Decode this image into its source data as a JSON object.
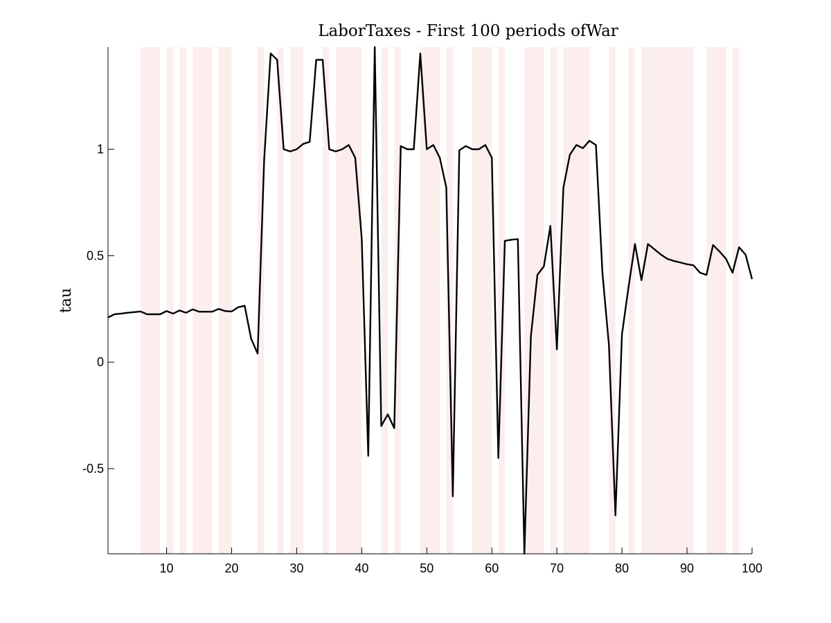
{
  "chart_data": {
    "type": "line",
    "title": "LaborTaxes - First 100 periods ofWar",
    "xlabel": "",
    "ylabel": "tau",
    "xlim": [
      1,
      100
    ],
    "ylim": [
      -0.9,
      1.48
    ],
    "xticks": [
      10,
      20,
      30,
      40,
      50,
      60,
      70,
      80,
      90,
      100
    ],
    "xtick_labels": [
      "10",
      "20",
      "30",
      "40",
      "50",
      "60",
      "70",
      "80",
      "90",
      "100"
    ],
    "yticks": [
      -0.5,
      0,
      0.5,
      1
    ],
    "ytick_labels": [
      "-0.5",
      "0",
      "0.5",
      "1"
    ],
    "grid": false,
    "line_color": "#000000",
    "shade_color": "#fdeeee",
    "war_periods": [
      [
        6,
        9
      ],
      [
        10,
        11
      ],
      [
        12,
        13
      ],
      [
        14,
        17
      ],
      [
        18,
        20
      ],
      [
        24,
        25
      ],
      [
        27,
        28
      ],
      [
        29,
        31
      ],
      [
        34,
        35
      ],
      [
        36,
        40
      ],
      [
        43,
        44
      ],
      [
        45,
        46
      ],
      [
        49,
        52
      ],
      [
        53,
        54
      ],
      [
        57,
        60
      ],
      [
        61,
        62
      ],
      [
        65,
        68
      ],
      [
        69,
        70
      ],
      [
        71,
        75
      ],
      [
        78,
        79
      ],
      [
        81,
        82
      ],
      [
        83,
        91
      ],
      [
        93,
        96
      ],
      [
        97,
        98
      ]
    ],
    "series": [
      {
        "x": [
          1,
          2,
          3,
          4,
          5,
          6,
          7,
          8,
          9,
          10,
          11,
          12,
          13,
          14,
          15,
          16,
          17,
          18,
          19,
          20,
          21,
          22,
          23,
          24,
          25,
          26,
          27,
          28,
          29,
          30,
          31,
          32,
          33,
          34,
          35,
          36,
          37,
          38,
          39,
          40,
          41,
          42,
          43,
          44,
          45,
          46,
          47,
          48,
          49,
          50,
          51,
          52,
          53,
          54,
          55,
          56,
          57,
          58,
          59,
          60,
          61,
          62,
          63,
          64,
          65,
          66,
          67,
          68,
          69,
          70,
          71,
          72,
          73,
          74,
          75,
          76,
          77,
          78,
          79,
          80,
          81,
          82,
          83,
          84,
          85,
          86,
          87,
          88,
          89,
          90,
          91,
          92,
          93,
          94,
          95,
          96,
          97,
          98,
          99,
          100
        ],
        "y": [
          0.21,
          0.225,
          0.228,
          0.232,
          0.235,
          0.238,
          0.225,
          0.225,
          0.225,
          0.24,
          0.228,
          0.243,
          0.232,
          0.248,
          0.237,
          0.237,
          0.237,
          0.25,
          0.24,
          0.238,
          0.258,
          0.265,
          0.11,
          0.04,
          0.95,
          1.45,
          1.42,
          1.0,
          0.99,
          1.0,
          1.025,
          1.035,
          1.42,
          1.42,
          1.0,
          0.99,
          1.0,
          1.02,
          0.96,
          0.58,
          -0.44,
          1.48,
          -0.3,
          -0.245,
          -0.31,
          1.015,
          1.0,
          1.0,
          1.45,
          1.0,
          1.02,
          0.96,
          0.82,
          -0.63,
          0.995,
          1.015,
          1.0,
          1.0,
          1.02,
          0.96,
          -0.45,
          0.57,
          0.575,
          0.578,
          -0.9,
          0.12,
          0.41,
          0.45,
          0.64,
          0.06,
          0.82,
          0.975,
          1.02,
          1.005,
          1.04,
          1.02,
          0.42,
          0.08,
          -0.72,
          0.13,
          0.35,
          0.555,
          0.385,
          0.555,
          0.53,
          0.505,
          0.485,
          0.475,
          0.468,
          0.46,
          0.455,
          0.42,
          0.41,
          0.55,
          0.52,
          0.485,
          0.42,
          0.54,
          0.505,
          0.39
        ]
      }
    ]
  }
}
